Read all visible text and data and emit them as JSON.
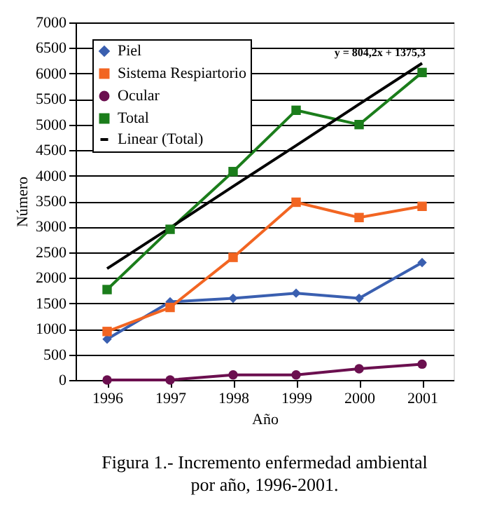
{
  "chart_data": {
    "type": "line",
    "title": "Figura 1.- Incremento enfermedad ambiental por año, 1996-2001.",
    "xlabel": "Año",
    "ylabel": "Número",
    "categories": [
      "1996",
      "1997",
      "1998",
      "1999",
      "2000",
      "2001"
    ],
    "series": [
      {
        "name": "Piel",
        "color": "#3a5fb0",
        "marker": "diamond",
        "values": [
          800,
          1530,
          1600,
          1700,
          1600,
          2300
        ]
      },
      {
        "name": "Sistema Respiartorio",
        "color": "#f26522",
        "marker": "square",
        "values": [
          950,
          1420,
          2400,
          3480,
          3180,
          3400
        ]
      },
      {
        "name": "Ocular",
        "color": "#6b0f4f",
        "marker": "circle",
        "values": [
          0,
          0,
          100,
          100,
          220,
          310
        ]
      },
      {
        "name": "Total",
        "color": "#1b7d1b",
        "marker": "square",
        "values": [
          1770,
          2950,
          4080,
          5280,
          5000,
          6020
        ]
      },
      {
        "name": "Linear (Total)",
        "color": "#000000",
        "marker": "none",
        "values": [
          2180,
          2980,
          3790,
          4590,
          5400,
          6200
        ]
      }
    ],
    "ylim": [
      0,
      7000
    ],
    "yticks": [
      0,
      500,
      1000,
      1500,
      2000,
      2500,
      3000,
      3500,
      4000,
      4500,
      5000,
      5500,
      6000,
      6500,
      7000
    ],
    "grid": "y",
    "legend": "top left",
    "annotations": [
      "y = 804,2x + 1375,3"
    ]
  }
}
